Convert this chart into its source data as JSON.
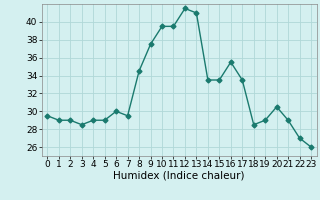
{
  "x": [
    0,
    1,
    2,
    3,
    4,
    5,
    6,
    7,
    8,
    9,
    10,
    11,
    12,
    13,
    14,
    15,
    16,
    17,
    18,
    19,
    20,
    21,
    22,
    23
  ],
  "y": [
    29.5,
    29.0,
    29.0,
    28.5,
    29.0,
    29.0,
    30.0,
    29.5,
    34.5,
    37.5,
    39.5,
    39.5,
    41.5,
    41.0,
    33.5,
    33.5,
    35.5,
    33.5,
    28.5,
    29.0,
    30.5,
    29.0,
    27.0,
    26.0
  ],
  "line_color": "#1a7a6e",
  "marker": "D",
  "marker_size": 2.5,
  "linewidth": 1.0,
  "background_color": "#d4f0f0",
  "grid_color": "#b0d8d8",
  "xlabel": "Humidex (Indice chaleur)",
  "ylim": [
    25,
    42
  ],
  "xlim": [
    -0.5,
    23.5
  ],
  "yticks": [
    26,
    28,
    30,
    32,
    34,
    36,
    38,
    40
  ],
  "xticks": [
    0,
    1,
    2,
    3,
    4,
    5,
    6,
    7,
    8,
    9,
    10,
    11,
    12,
    13,
    14,
    15,
    16,
    17,
    18,
    19,
    20,
    21,
    22,
    23
  ],
  "xlabel_fontsize": 7.5,
  "tick_fontsize": 6.5
}
